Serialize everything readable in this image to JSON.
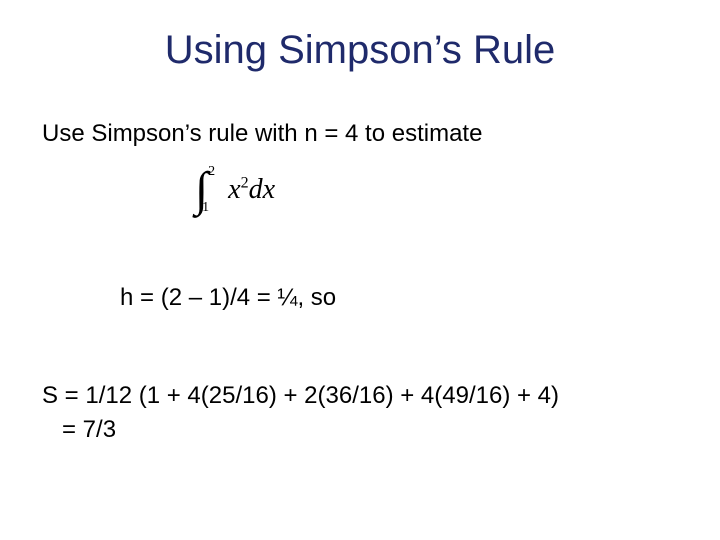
{
  "colors": {
    "title_color": "#1f2a6b",
    "body_color": "#000000",
    "background": "#ffffff"
  },
  "fonts": {
    "title_family": "Arial",
    "title_size_pt": 40,
    "body_family": "Arial",
    "body_size_pt": 24,
    "math_family": "Times New Roman",
    "math_style": "italic"
  },
  "title": "Using Simpson’s Rule",
  "lines": {
    "intro": "Use Simpson’s rule with n = 4 to estimate",
    "h_line": "h = (2 – 1)/4  = ¼, so",
    "s_line": "S = 1/12 (1 + 4(25/16) + 2(36/16) + 4(49/16) + 4)",
    "result_line": "=  7/3"
  },
  "integral": {
    "lower_bound": "1",
    "upper_bound": "2",
    "variable": "x",
    "exponent": "2",
    "differential": "dx"
  }
}
